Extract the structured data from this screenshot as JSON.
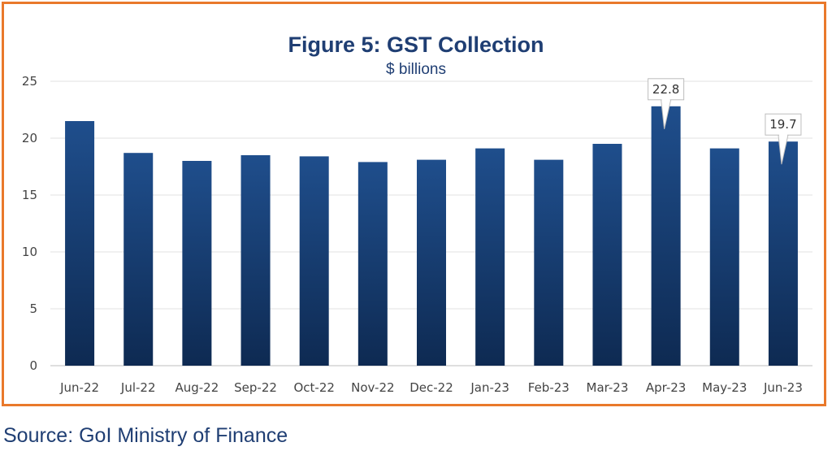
{
  "chart_data": {
    "type": "bar",
    "title": "Figure 5: GST Collection",
    "subtitle": "$ billions",
    "categories": [
      "Jun-22",
      "Jul-22",
      "Aug-22",
      "Sep-22",
      "Oct-22",
      "Nov-22",
      "Dec-22",
      "Jan-23",
      "Feb-23",
      "Mar-23",
      "Apr-23",
      "May-23",
      "Jun-23"
    ],
    "values": [
      21.5,
      18.7,
      18.0,
      18.5,
      18.4,
      17.9,
      18.1,
      19.1,
      18.1,
      19.5,
      22.8,
      19.1,
      19.7
    ],
    "ylim": [
      0,
      25
    ],
    "yticks": [
      0,
      5,
      10,
      15,
      20,
      25
    ],
    "grid": true,
    "annotations": [
      {
        "category": "Apr-23",
        "text": "22.8"
      },
      {
        "category": "Jun-23",
        "text": "19.7"
      }
    ],
    "bar_color_top": "#1F4E8C",
    "bar_color_bottom": "#0E2A52"
  },
  "source": "Source: GoI Ministry of Finance",
  "colors": {
    "frame": "#E9792B",
    "text": "#1F3E73"
  }
}
